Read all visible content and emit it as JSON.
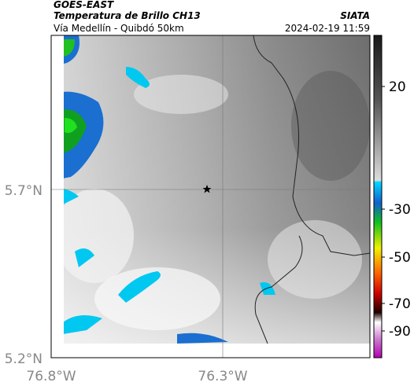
{
  "header": {
    "satellite": "GOES-EAST",
    "product": "Temperatura de Brillo CH13",
    "source": "SIATA",
    "route": "Vía Medellín - Quibdó 50km",
    "datetime": "2024-02-19 11:59"
  },
  "map": {
    "lat_labels": [
      "5.7°N",
      "5.2°N"
    ],
    "lon_labels": [
      "76.8°W",
      "76.3°W"
    ]
  },
  "colorbar": {
    "tick_labels": [
      "20",
      "-30",
      "-50",
      "-70",
      "-90"
    ]
  }
}
